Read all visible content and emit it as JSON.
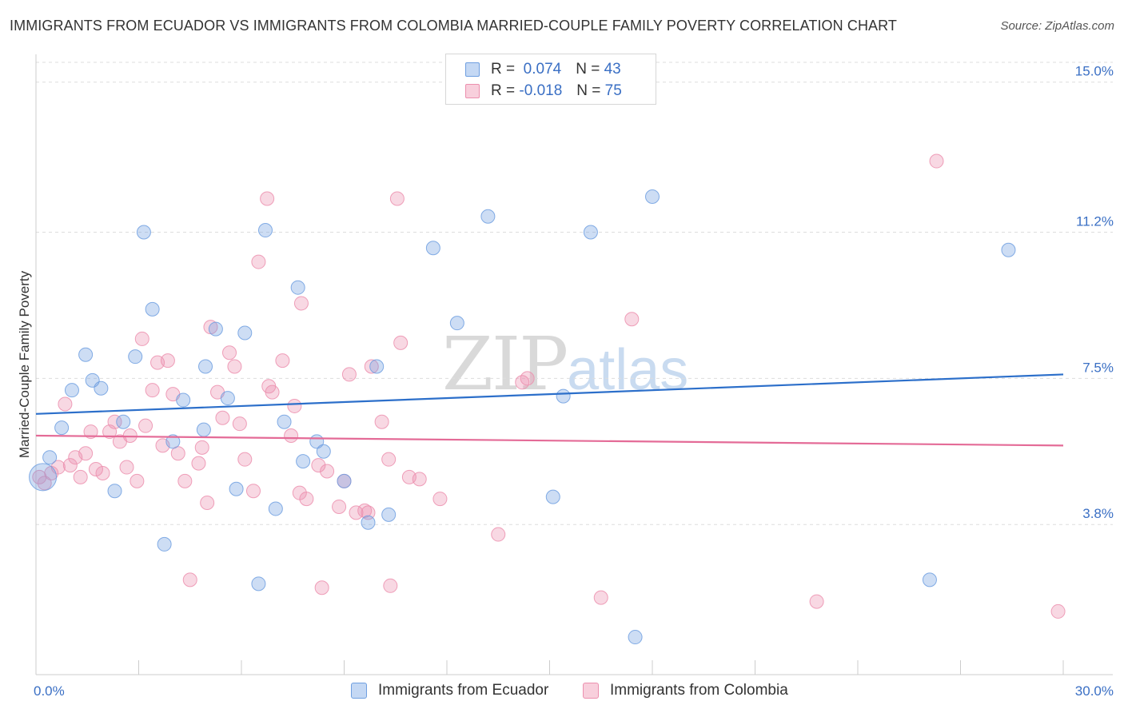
{
  "header": {
    "title": "IMMIGRANTS FROM ECUADOR VS IMMIGRANTS FROM COLOMBIA MARRIED-COUPLE FAMILY POVERTY CORRELATION CHART",
    "source": "Source: ZipAtlas.com"
  },
  "legend": {
    "r_label": "R =",
    "n_label": "N =",
    "series": [
      {
        "r": "0.074",
        "n": "43"
      },
      {
        "r": "-0.018",
        "n": "75"
      }
    ]
  },
  "watermark": {
    "zip": "ZIP",
    "atlas": "atlas"
  },
  "chart_data": {
    "type": "scatter",
    "title": "IMMIGRANTS FROM ECUADOR VS IMMIGRANTS FROM COLOMBIA MARRIED-COUPLE FAMILY POVERTY CORRELATION CHART",
    "xlabel": "",
    "ylabel": "Married-Couple Family Poverty",
    "xlim": [
      0,
      30
    ],
    "ylim": [
      0,
      15.5
    ],
    "x_tick_labels": [
      "0.0%",
      "30.0%"
    ],
    "y_ticks": [
      3.8,
      7.5,
      11.2,
      15.0
    ],
    "y_tick_labels": [
      "3.8%",
      "7.5%",
      "11.2%",
      "15.0%"
    ],
    "legend_position": "top-center",
    "colors": {
      "ecuador": "#6f9fe0",
      "colombia": "#ec8fae",
      "ecuador_line": "#2c6fca",
      "colombia_line": "#e46b97"
    },
    "series": [
      {
        "name": "Immigrants from Ecuador",
        "r": 0.074,
        "n": 43,
        "trend": {
          "x": [
            0,
            30
          ],
          "y": [
            6.6,
            7.6
          ]
        },
        "points": [
          [
            0.2,
            5.0
          ],
          [
            0.4,
            5.5
          ],
          [
            0.75,
            6.25
          ],
          [
            1.05,
            7.2
          ],
          [
            1.45,
            8.1
          ],
          [
            1.65,
            7.45
          ],
          [
            1.9,
            7.25
          ],
          [
            2.3,
            4.65
          ],
          [
            2.55,
            6.4
          ],
          [
            2.9,
            8.05
          ],
          [
            3.15,
            11.2
          ],
          [
            3.4,
            9.25
          ],
          [
            3.75,
            3.3
          ],
          [
            4.0,
            5.9
          ],
          [
            4.3,
            6.95
          ],
          [
            4.9,
            6.2
          ],
          [
            4.95,
            7.8
          ],
          [
            5.25,
            8.75
          ],
          [
            5.6,
            7.0
          ],
          [
            5.85,
            4.7
          ],
          [
            6.1,
            8.65
          ],
          [
            6.5,
            2.3
          ],
          [
            6.7,
            11.25
          ],
          [
            7.0,
            4.2
          ],
          [
            7.25,
            6.4
          ],
          [
            7.65,
            9.8
          ],
          [
            7.8,
            5.4
          ],
          [
            8.2,
            5.9
          ],
          [
            8.4,
            5.65
          ],
          [
            9.0,
            4.9
          ],
          [
            9.7,
            3.85
          ],
          [
            9.95,
            7.8
          ],
          [
            10.3,
            4.05
          ],
          [
            11.6,
            10.8
          ],
          [
            12.3,
            8.9
          ],
          [
            13.2,
            11.6
          ],
          [
            15.1,
            4.5
          ],
          [
            15.4,
            7.05
          ],
          [
            16.2,
            11.2
          ],
          [
            17.5,
            0.95
          ],
          [
            18.0,
            12.1
          ],
          [
            26.1,
            2.4
          ],
          [
            28.4,
            10.75
          ]
        ]
      },
      {
        "name": "Immigrants from Colombia",
        "r": -0.018,
        "n": 75,
        "trend": {
          "x": [
            0,
            30
          ],
          "y": [
            6.05,
            5.8
          ]
        },
        "points": [
          [
            0.1,
            5.0
          ],
          [
            0.25,
            4.85
          ],
          [
            0.45,
            5.1
          ],
          [
            0.65,
            5.25
          ],
          [
            0.85,
            6.85
          ],
          [
            1.0,
            5.3
          ],
          [
            1.15,
            5.5
          ],
          [
            1.3,
            5.0
          ],
          [
            1.45,
            5.6
          ],
          [
            1.6,
            6.15
          ],
          [
            1.75,
            5.2
          ],
          [
            1.95,
            5.1
          ],
          [
            2.15,
            6.15
          ],
          [
            2.3,
            6.4
          ],
          [
            2.45,
            5.9
          ],
          [
            2.65,
            5.25
          ],
          [
            2.75,
            6.05
          ],
          [
            2.95,
            4.9
          ],
          [
            3.1,
            8.5
          ],
          [
            3.2,
            6.3
          ],
          [
            3.4,
            7.2
          ],
          [
            3.55,
            7.9
          ],
          [
            3.7,
            5.8
          ],
          [
            3.85,
            7.95
          ],
          [
            4.0,
            7.1
          ],
          [
            4.15,
            5.6
          ],
          [
            4.35,
            4.9
          ],
          [
            4.5,
            2.4
          ],
          [
            4.75,
            5.35
          ],
          [
            4.85,
            5.75
          ],
          [
            5.0,
            4.35
          ],
          [
            5.1,
            8.8
          ],
          [
            5.3,
            7.15
          ],
          [
            5.45,
            6.5
          ],
          [
            5.65,
            8.15
          ],
          [
            5.8,
            7.8
          ],
          [
            5.95,
            6.35
          ],
          [
            6.1,
            5.45
          ],
          [
            6.35,
            4.65
          ],
          [
            6.5,
            10.45
          ],
          [
            6.75,
            12.05
          ],
          [
            6.8,
            7.3
          ],
          [
            6.9,
            7.15
          ],
          [
            7.2,
            7.95
          ],
          [
            7.45,
            6.05
          ],
          [
            7.55,
            6.8
          ],
          [
            7.7,
            4.6
          ],
          [
            7.75,
            9.4
          ],
          [
            7.9,
            4.45
          ],
          [
            8.25,
            5.3
          ],
          [
            8.35,
            2.2
          ],
          [
            8.5,
            5.15
          ],
          [
            8.85,
            4.25
          ],
          [
            9.0,
            4.9
          ],
          [
            9.15,
            7.6
          ],
          [
            9.35,
            4.1
          ],
          [
            9.6,
            4.15
          ],
          [
            9.7,
            4.1
          ],
          [
            9.8,
            7.8
          ],
          [
            10.1,
            6.4
          ],
          [
            10.3,
            5.45
          ],
          [
            10.35,
            2.25
          ],
          [
            10.55,
            12.05
          ],
          [
            10.65,
            8.4
          ],
          [
            10.9,
            5.0
          ],
          [
            11.2,
            4.95
          ],
          [
            11.8,
            4.45
          ],
          [
            13.5,
            3.55
          ],
          [
            14.2,
            7.4
          ],
          [
            14.35,
            7.5
          ],
          [
            16.5,
            1.95
          ],
          [
            17.4,
            9.0
          ],
          [
            22.8,
            1.85
          ],
          [
            26.3,
            13.0
          ],
          [
            29.85,
            1.6
          ]
        ]
      }
    ]
  },
  "bottom_legend": {
    "ecuador_label": "Immigrants from Ecuador",
    "colombia_label": "Immigrants from Colombia"
  }
}
